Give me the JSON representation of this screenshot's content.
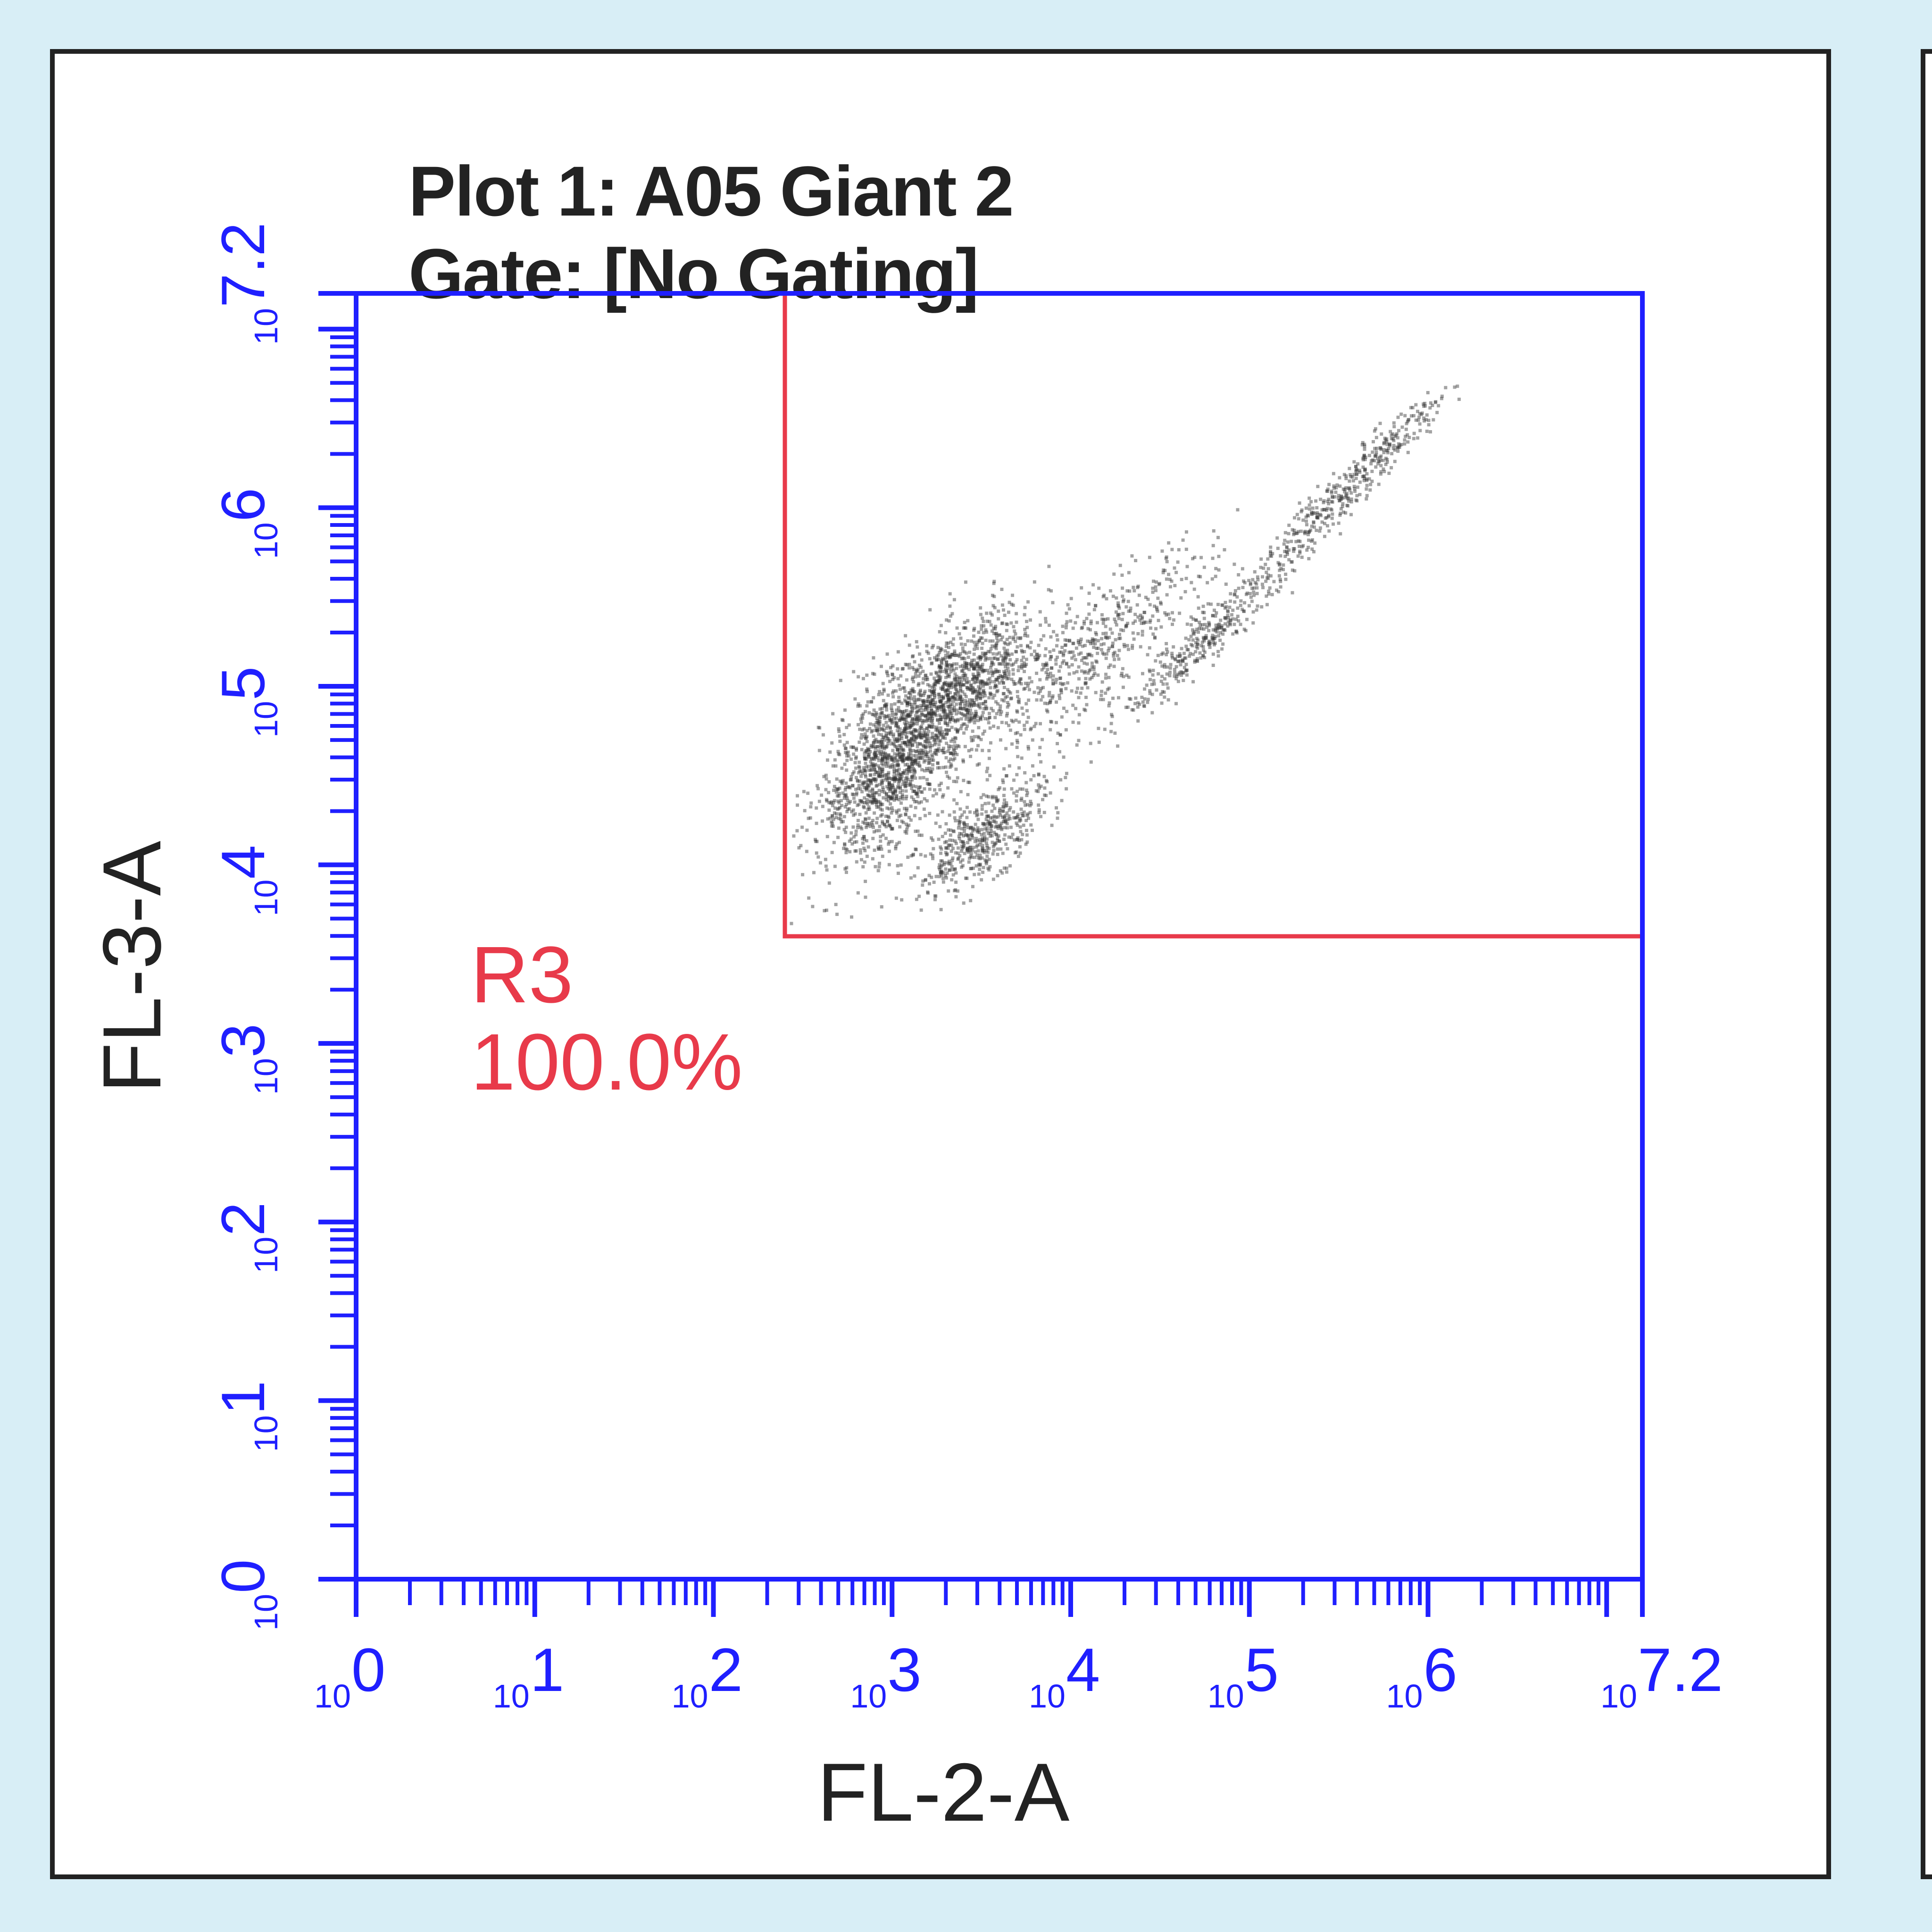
{
  "plot": {
    "title": "Plot 1: A05 Giant 2",
    "gate": "Gate:  [No Gating]"
  },
  "region": {
    "name": "R3",
    "percent": "100.0%",
    "x_min_log": 2.4,
    "y_min_log": 3.6,
    "color": "#e83a4a"
  },
  "colors": {
    "axis": "#1f1fff",
    "points": "#333333",
    "background": "#d8eef6"
  },
  "chart_data": {
    "type": "scatter",
    "title": "Plot 1: A05 Giant 2",
    "subtitle": "Gate:  [No Gating]",
    "xlabel": "FL-2-A",
    "ylabel": "FL-3-A",
    "x_scale": "log",
    "y_scale": "log",
    "xlim": [
      1,
      15848932
    ],
    "ylim": [
      1,
      15848932
    ],
    "x_ticks": [
      {
        "base": "10",
        "exp": "0"
      },
      {
        "base": "10",
        "exp": "1"
      },
      {
        "base": "10",
        "exp": "2"
      },
      {
        "base": "10",
        "exp": "3"
      },
      {
        "base": "10",
        "exp": "4"
      },
      {
        "base": "10",
        "exp": "5"
      },
      {
        "base": "10",
        "exp": "6"
      },
      {
        "base": "10",
        "exp": "7.2"
      }
    ],
    "y_ticks": [
      {
        "base": "10",
        "exp": "0"
      },
      {
        "base": "10",
        "exp": "1"
      },
      {
        "base": "10",
        "exp": "2"
      },
      {
        "base": "10",
        "exp": "3"
      },
      {
        "base": "10",
        "exp": "4"
      },
      {
        "base": "10",
        "exp": "5"
      },
      {
        "base": "10",
        "exp": "6"
      },
      {
        "base": "10",
        "exp": "7.2"
      }
    ],
    "grid": false,
    "regions": [
      {
        "name": "R3",
        "percent": "100.0%",
        "x_min": 251,
        "y_min": 3981
      }
    ],
    "density_clusters": [
      {
        "x": 1000,
        "y": 40000,
        "spread_x": 0.2,
        "spread_y": 0.28,
        "weight": 0.34,
        "corr": 0.55
      },
      {
        "x": 2500,
        "y": 100000,
        "spread_x": 0.2,
        "spread_y": 0.22,
        "weight": 0.22,
        "corr": 0.6
      },
      {
        "x": 3200,
        "y": 15000,
        "spread_x": 0.18,
        "spread_y": 0.16,
        "weight": 0.12,
        "corr": 0.7
      },
      {
        "x": 12000,
        "y": 150000,
        "spread_x": 0.35,
        "spread_y": 0.3,
        "weight": 0.14,
        "corr": 0.8
      },
      {
        "x": 60000,
        "y": 200000,
        "spread_x": 0.25,
        "spread_y": 0.24,
        "weight": 0.08,
        "corr": 0.95
      },
      {
        "x": 400000,
        "y": 1500000,
        "spread_x": 0.3,
        "spread_y": 0.3,
        "weight": 0.1,
        "corr": 0.97
      }
    ]
  }
}
